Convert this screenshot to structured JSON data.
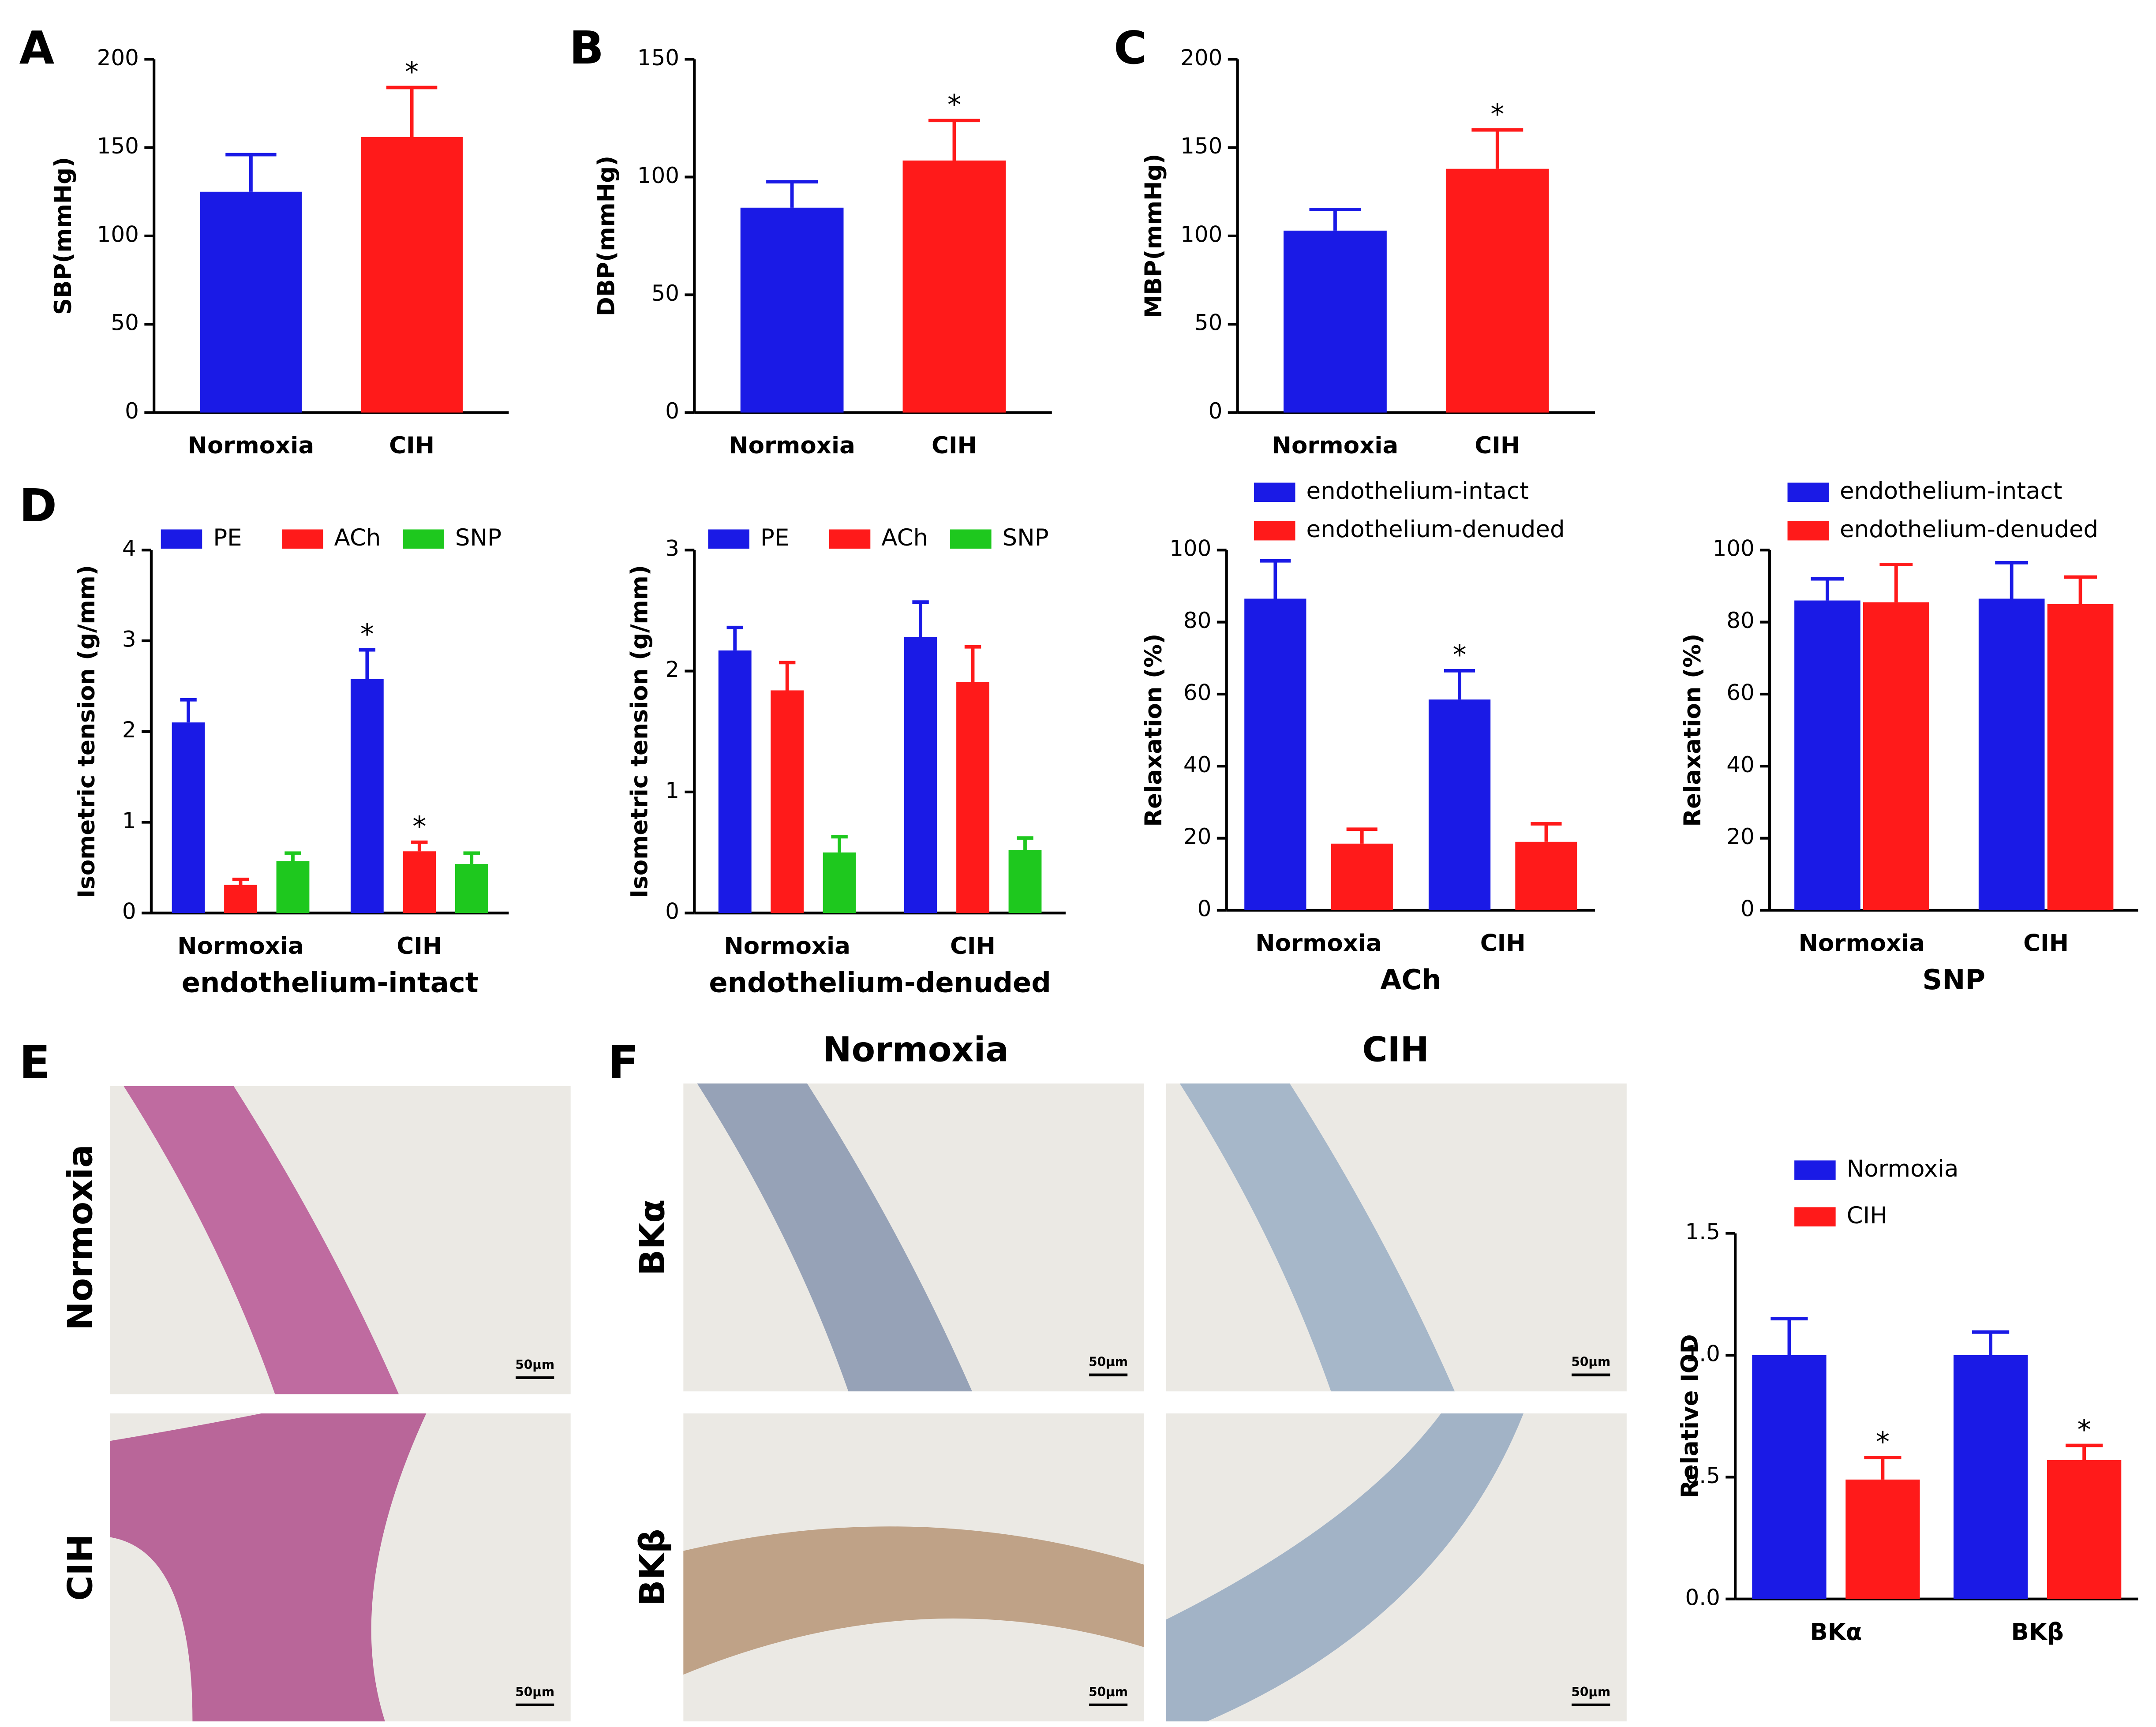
{
  "panel_labels": [
    "A",
    "B",
    "C",
    "D",
    "E",
    "F"
  ],
  "images": {
    "E": {
      "row_labels": [
        "Normoxia",
        "CIH"
      ],
      "scale_bar": "50μm"
    },
    "F": {
      "column_labels": [
        "Normoxia",
        "CIH"
      ],
      "row_labels": [
        "BKα",
        "BKβ"
      ],
      "scale_bar": "50μm"
    }
  },
  "chart_data": [
    {
      "type": "bar",
      "ylabel": "SBP(mmHg)",
      "categories": [
        "Normoxia",
        "CIH"
      ],
      "series": [
        {
          "values": [
            125,
            156
          ],
          "errors": [
            21,
            28
          ],
          "colors": [
            "#1a1ae6",
            "#ff1a1a"
          ],
          "significance": [
            null,
            "*"
          ]
        }
      ],
      "ylim": [
        0,
        200
      ],
      "yticks": [
        0,
        50,
        100,
        150,
        200
      ]
    },
    {
      "type": "bar",
      "ylabel": "DBP(mmHg)",
      "categories": [
        "Normoxia",
        "CIH"
      ],
      "series": [
        {
          "values": [
            87,
            107
          ],
          "errors": [
            11,
            17
          ],
          "colors": [
            "#1a1ae6",
            "#ff1a1a"
          ],
          "significance": [
            null,
            "*"
          ]
        }
      ],
      "ylim": [
        0,
        150
      ],
      "yticks": [
        0,
        50,
        100,
        150
      ]
    },
    {
      "type": "bar",
      "ylabel": "MBP(mmHg)",
      "categories": [
        "Normoxia",
        "CIH"
      ],
      "series": [
        {
          "values": [
            103,
            138
          ],
          "errors": [
            12,
            22
          ],
          "colors": [
            "#1a1ae6",
            "#ff1a1a"
          ],
          "significance": [
            null,
            "*"
          ]
        }
      ],
      "ylim": [
        0,
        200
      ],
      "yticks": [
        0,
        50,
        100,
        150,
        200
      ]
    },
    {
      "type": "bar",
      "ylabel": "Isometric tension (g/mm)",
      "xlabel": "endothelium-intact",
      "categories": [
        "Normoxia",
        "CIH"
      ],
      "series": [
        {
          "name": "PE",
          "color": "#1a1ae6",
          "values": [
            2.1,
            2.58
          ],
          "errors": [
            0.25,
            0.32
          ],
          "significance": [
            null,
            "*"
          ]
        },
        {
          "name": "ACh",
          "color": "#ff1a1a",
          "values": [
            0.31,
            0.68
          ],
          "errors": [
            0.06,
            0.1
          ],
          "significance": [
            null,
            "*"
          ]
        },
        {
          "name": "SNP",
          "color": "#1ec81e",
          "values": [
            0.57,
            0.54
          ],
          "errors": [
            0.09,
            0.12
          ],
          "significance": [
            null,
            null
          ]
        }
      ],
      "ylim": [
        0,
        4
      ],
      "yticks": [
        0,
        1,
        2,
        3,
        4
      ],
      "legend": "top"
    },
    {
      "type": "bar",
      "ylabel": "Isometric tension (g/mm)",
      "xlabel": "endothelium-denuded",
      "categories": [
        "Normoxia",
        "CIH"
      ],
      "series": [
        {
          "name": "PE",
          "color": "#1a1ae6",
          "values": [
            2.17,
            2.28
          ],
          "errors": [
            0.19,
            0.29
          ],
          "significance": [
            null,
            null
          ]
        },
        {
          "name": "ACh",
          "color": "#ff1a1a",
          "values": [
            1.84,
            1.91
          ],
          "errors": [
            0.23,
            0.29
          ],
          "significance": [
            null,
            null
          ]
        },
        {
          "name": "SNP",
          "color": "#1ec81e",
          "values": [
            0.5,
            0.52
          ],
          "errors": [
            0.13,
            0.1
          ],
          "significance": [
            null,
            null
          ]
        }
      ],
      "ylim": [
        0,
        3
      ],
      "yticks": [
        0,
        1,
        2,
        3
      ],
      "legend": "top"
    },
    {
      "type": "bar",
      "ylabel": "Relaxation (%)",
      "xlabel": "ACh",
      "categories": [
        "Normoxia",
        "CIH"
      ],
      "series": [
        {
          "name": "endothelium-intact",
          "color": "#1a1ae6",
          "values": [
            86.5,
            58.5
          ],
          "errors": [
            10.5,
            8
          ],
          "significance": [
            null,
            "*"
          ]
        },
        {
          "name": "endothelium-denuded",
          "color": "#ff1a1a",
          "values": [
            18.5,
            19
          ],
          "errors": [
            4,
            5
          ],
          "significance": [
            null,
            null
          ]
        }
      ],
      "ylim": [
        0,
        100
      ],
      "yticks": [
        0,
        20,
        40,
        60,
        80,
        100
      ],
      "legend": "top"
    },
    {
      "type": "bar",
      "ylabel": "Relaxation (%)",
      "xlabel": "SNP",
      "categories": [
        "Normoxia",
        "CIH"
      ],
      "series": [
        {
          "name": "endothelium-intact",
          "color": "#1a1ae6",
          "values": [
            86,
            86.5
          ],
          "errors": [
            6,
            10
          ],
          "significance": [
            null,
            null
          ]
        },
        {
          "name": "endothelium-denuded",
          "color": "#ff1a1a",
          "values": [
            85.5,
            85
          ],
          "errors": [
            10.5,
            7.5
          ],
          "significance": [
            null,
            null
          ]
        }
      ],
      "ylim": [
        0,
        100
      ],
      "yticks": [
        0,
        20,
        40,
        60,
        80,
        100
      ],
      "legend": "top"
    },
    {
      "type": "bar",
      "ylabel": "Relative IOD",
      "categories": [
        "BKα",
        "BKβ"
      ],
      "series": [
        {
          "name": "Normoxia",
          "color": "#1a1ae6",
          "values": [
            1.0,
            1.0
          ],
          "errors": [
            0.15,
            0.095
          ],
          "significance": [
            null,
            null
          ]
        },
        {
          "name": "CIH",
          "color": "#ff1a1a",
          "values": [
            0.49,
            0.57
          ],
          "errors": [
            0.09,
            0.06
          ],
          "significance": [
            "*",
            "*"
          ]
        }
      ],
      "ylim": [
        0,
        1.5
      ],
      "yticks": [
        {
          "value": 0,
          "label": "0.0"
        },
        0.5,
        {
          "value": 1,
          "label": "1.0"
        },
        1.5
      ],
      "legend": "top"
    }
  ]
}
